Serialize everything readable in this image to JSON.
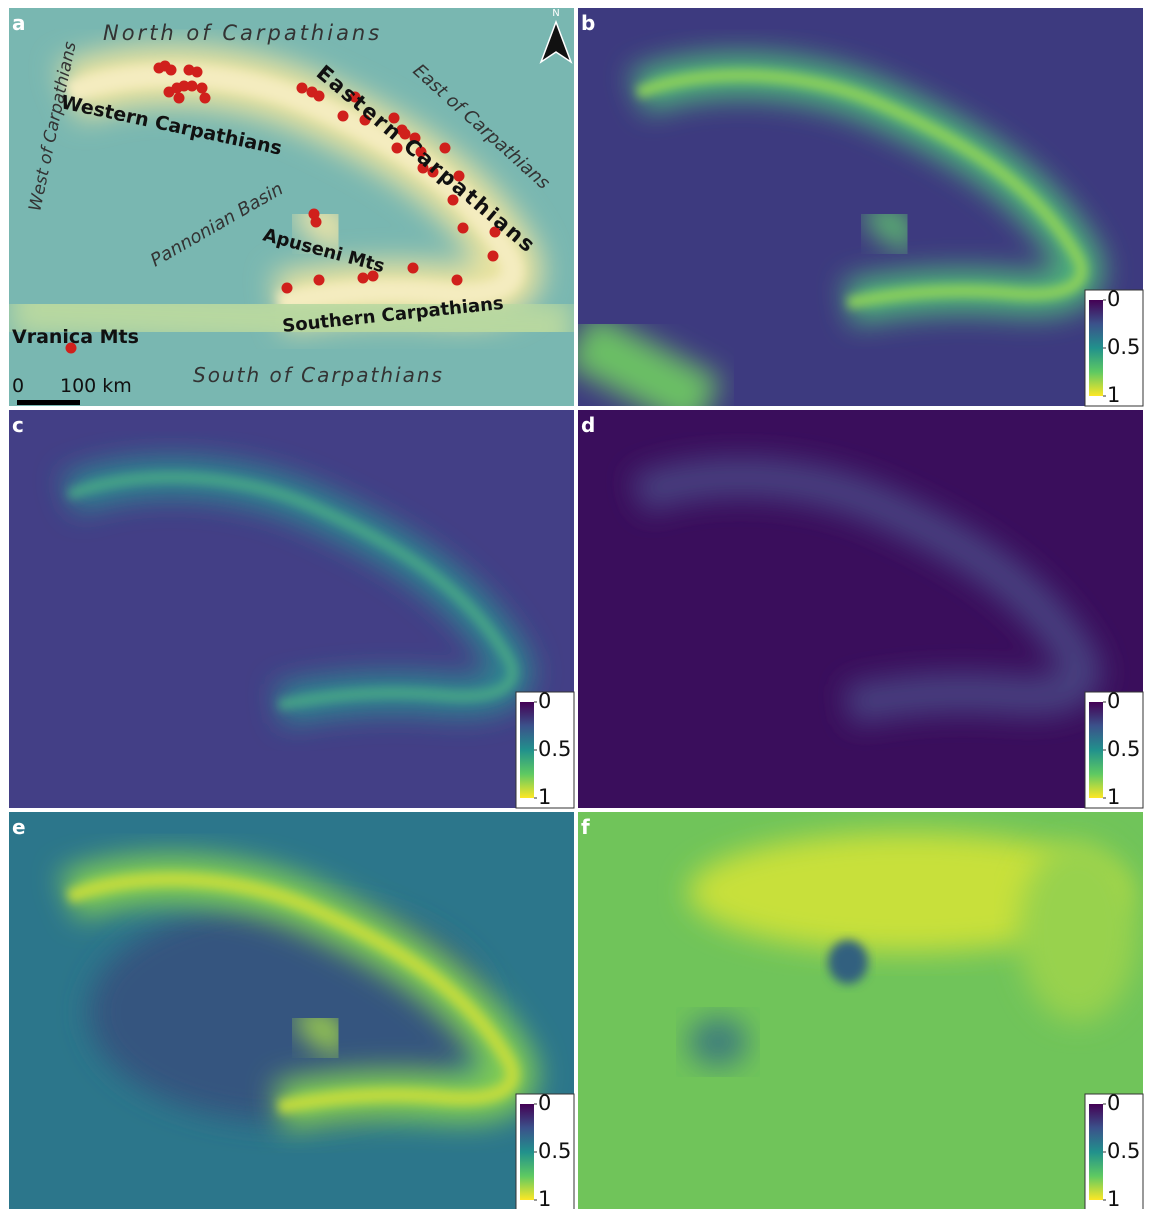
{
  "panels": [
    {
      "label": "a",
      "places": [
        "North of Carpathians",
        "West of Carpathians",
        "East of Carpathians",
        "Western Carpathians",
        "Eastern Carpathians",
        "Pannonian Basin",
        "Apuseni Mts",
        "Southern Carpathians",
        "Vranica Mts",
        "South of Carpathians"
      ],
      "north": "N",
      "scale_bar": [
        "0",
        "100 km"
      ]
    },
    {
      "label": "b"
    },
    {
      "label": "c"
    },
    {
      "label": "d"
    },
    {
      "label": "e"
    },
    {
      "label": "f"
    }
  ],
  "legend": {
    "ticks": [
      0,
      0.5,
      1
    ]
  }
}
